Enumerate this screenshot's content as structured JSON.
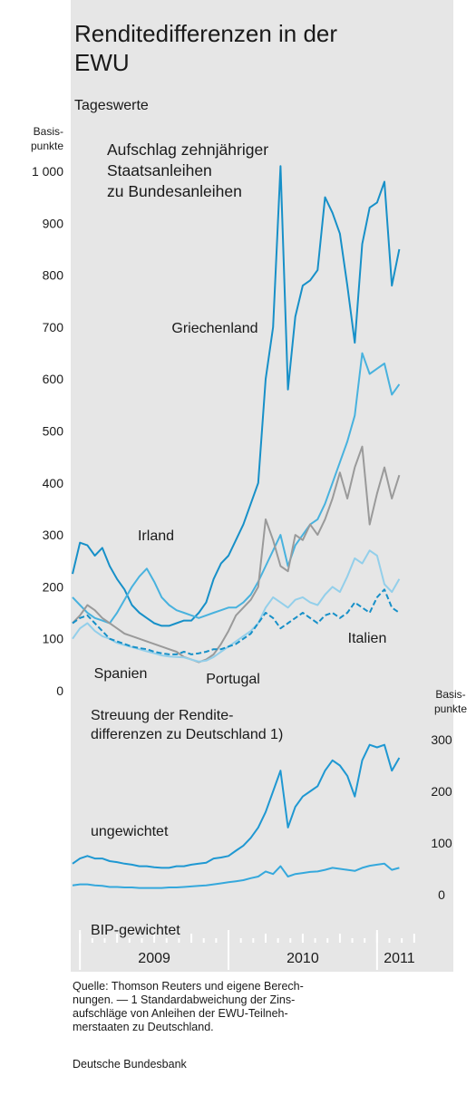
{
  "title": [
    "Renditedifferenzen in der",
    "EWU"
  ],
  "subtitle": "Tageswerte",
  "source": [
    "Quelle: Thomson Reuters und eigene Berech-",
    "nungen. — 1 Standardabweichung der Zins-",
    "aufschläge von Anleihen der EWU-Teilneh-",
    "merstaaten zu Deutschland."
  ],
  "publisher": "Deutsche Bundesbank",
  "chart_data": [
    {
      "type": "line",
      "title": [
        "Aufschlag zehnjähriger",
        "Staatsanleihen",
        "zu Bundesanleihen"
      ],
      "y_unit": [
        "Basis-",
        "punkte"
      ],
      "y_axis_position": "left",
      "x": [
        2008.95,
        2009,
        2009.05,
        2009.1,
        2009.15,
        2009.2,
        2009.25,
        2009.3,
        2009.35,
        2009.4,
        2009.45,
        2009.5,
        2009.55,
        2009.6,
        2009.65,
        2009.7,
        2009.75,
        2009.8,
        2009.85,
        2009.9,
        2009.95,
        2010,
        2010.05,
        2010.1,
        2010.15,
        2010.2,
        2010.25,
        2010.3,
        2010.35,
        2010.4,
        2010.45,
        2010.5,
        2010.55,
        2010.6,
        2010.65,
        2010.7,
        2010.75,
        2010.8,
        2010.85,
        2010.9,
        2010.95,
        2011,
        2011.05,
        2011.1,
        2011.15
      ],
      "xlim": [
        2008.95,
        2011.3
      ],
      "ylim": [
        0,
        1000
      ],
      "yticks": [
        0,
        100,
        200,
        300,
        400,
        500,
        600,
        700,
        800,
        900,
        {
          "value": 1000,
          "label": "1 000"
        }
      ],
      "series": [
        {
          "name": "Griechenland",
          "color": "#1790c8",
          "values": [
            225,
            285,
            280,
            260,
            275,
            240,
            215,
            195,
            165,
            150,
            140,
            130,
            125,
            125,
            130,
            135,
            135,
            150,
            170,
            215,
            245,
            260,
            290,
            320,
            360,
            400,
            600,
            700,
            1010,
            580,
            720,
            780,
            790,
            810,
            950,
            920,
            880,
            780,
            670,
            860,
            930,
            940,
            980,
            780,
            850
          ]
        },
        {
          "name": "Irland",
          "color": "#48b2de",
          "values": [
            180,
            165,
            150,
            140,
            135,
            130,
            150,
            175,
            200,
            220,
            235,
            210,
            180,
            165,
            155,
            150,
            145,
            140,
            145,
            150,
            155,
            160,
            160,
            170,
            185,
            210,
            240,
            270,
            300,
            240,
            280,
            300,
            320,
            330,
            360,
            400,
            440,
            480,
            530,
            650,
            610,
            620,
            630,
            570,
            590
          ]
        },
        {
          "name": "Portugal",
          "color": "#9a9a9a",
          "values": [
            130,
            145,
            165,
            155,
            140,
            130,
            120,
            110,
            105,
            100,
            95,
            90,
            85,
            80,
            75,
            65,
            60,
            55,
            60,
            70,
            90,
            115,
            145,
            160,
            175,
            200,
            330,
            290,
            240,
            230,
            300,
            290,
            320,
            300,
            330,
            370,
            420,
            370,
            430,
            470,
            320,
            380,
            430,
            370,
            415
          ]
        },
        {
          "name": "Spanien",
          "color": "#93cfea",
          "values": [
            100,
            120,
            130,
            115,
            105,
            100,
            92,
            88,
            84,
            80,
            76,
            72,
            68,
            66,
            65,
            64,
            60,
            56,
            58,
            65,
            75,
            85,
            95,
            105,
            115,
            130,
            160,
            180,
            170,
            160,
            175,
            180,
            170,
            165,
            185,
            200,
            190,
            220,
            255,
            245,
            270,
            260,
            205,
            190,
            215
          ]
        },
        {
          "name": "Italien",
          "color": "#1790c8",
          "dashed": true,
          "values": [
            130,
            140,
            145,
            130,
            115,
            100,
            95,
            90,
            85,
            82,
            80,
            75,
            72,
            70,
            70,
            75,
            70,
            72,
            75,
            80,
            80,
            85,
            90,
            100,
            110,
            130,
            150,
            140,
            120,
            130,
            140,
            150,
            140,
            130,
            145,
            150,
            140,
            150,
            170,
            160,
            150,
            180,
            195,
            160,
            150
          ]
        }
      ]
    },
    {
      "type": "line",
      "title": [
        "Streuung der Rendite-",
        "differenzen zu Deutschland 1)"
      ],
      "y_unit": [
        "Basis-",
        "punkte"
      ],
      "y_axis_position": "right",
      "x": [
        2008.95,
        2009,
        2009.05,
        2009.1,
        2009.15,
        2009.2,
        2009.25,
        2009.3,
        2009.35,
        2009.4,
        2009.45,
        2009.5,
        2009.55,
        2009.6,
        2009.65,
        2009.7,
        2009.75,
        2009.8,
        2009.85,
        2009.9,
        2009.95,
        2010,
        2010.05,
        2010.1,
        2010.15,
        2010.2,
        2010.25,
        2010.3,
        2010.35,
        2010.4,
        2010.45,
        2010.5,
        2010.55,
        2010.6,
        2010.65,
        2010.7,
        2010.75,
        2010.8,
        2010.85,
        2010.9,
        2010.95,
        2011,
        2011.05,
        2011.1,
        2011.15
      ],
      "xlim": [
        2008.95,
        2011.3
      ],
      "xticks": [
        {
          "value": 2009,
          "label": "2009"
        },
        {
          "value": 2010,
          "label": "2010"
        },
        {
          "value": 2011,
          "label": "2011"
        }
      ],
      "ylim": [
        0,
        300
      ],
      "yticks": [
        0,
        100,
        200,
        300
      ],
      "series": [
        {
          "name": "ungewichtet",
          "color": "#1f98d2",
          "values": [
            60,
            70,
            75,
            70,
            70,
            65,
            63,
            60,
            58,
            55,
            55,
            53,
            52,
            52,
            55,
            55,
            58,
            60,
            62,
            70,
            72,
            75,
            85,
            95,
            110,
            130,
            160,
            200,
            240,
            130,
            170,
            190,
            200,
            210,
            240,
            260,
            250,
            230,
            190,
            260,
            290,
            285,
            290,
            240,
            265
          ]
        },
        {
          "name": "BIP-gewichtet",
          "color": "#35a8dc",
          "values": [
            18,
            20,
            20,
            18,
            17,
            15,
            15,
            14,
            14,
            13,
            13,
            13,
            13,
            14,
            14,
            15,
            16,
            17,
            18,
            20,
            22,
            24,
            26,
            28,
            32,
            35,
            45,
            40,
            55,
            35,
            40,
            42,
            44,
            45,
            48,
            52,
            50,
            48,
            46,
            52,
            56,
            58,
            60,
            48,
            52
          ]
        }
      ]
    }
  ]
}
